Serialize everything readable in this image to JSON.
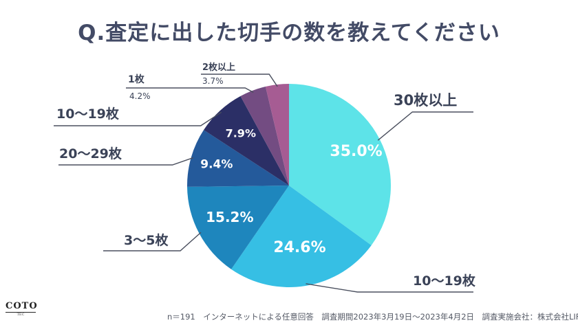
{
  "title": "Q.査定に出した切手の数を教えてください",
  "footer": "n＝191　インターネットによる任意回答　調査期間2023年3月19日〜2023年4月2日　調査実施会社：株式会社LIF",
  "logo": {
    "word": "COTO",
    "sub": "TEC"
  },
  "colors": {
    "slices": [
      "#5de3e8",
      "#36bfe4",
      "#1e86bd",
      "#245a9b",
      "#2b2f66",
      "#734c82",
      "#a65c93"
    ],
    "leader": "#4a4f5e",
    "text": "#3a4257",
    "inner_text": "#ffffff"
  },
  "chart_data": {
    "type": "pie",
    "start": "12 o'clock, clockwise",
    "slices": [
      {
        "label": "30枚以上",
        "value": 35.0,
        "pct": "35.0%"
      },
      {
        "label": "10〜19枚",
        "value": 24.6,
        "pct": "24.6%"
      },
      {
        "label": "3〜5枚",
        "value": 15.2,
        "pct": "15.2%"
      },
      {
        "label": "20〜29枚",
        "value": 9.4,
        "pct": "9.4%"
      },
      {
        "label": "10〜19枚",
        "value": 7.9,
        "pct": "7.9%"
      },
      {
        "label": "1枚",
        "value": 4.2,
        "pct": "4.2%"
      },
      {
        "label": "2枚以上",
        "value": 3.7,
        "pct": "3.7%"
      }
    ]
  }
}
